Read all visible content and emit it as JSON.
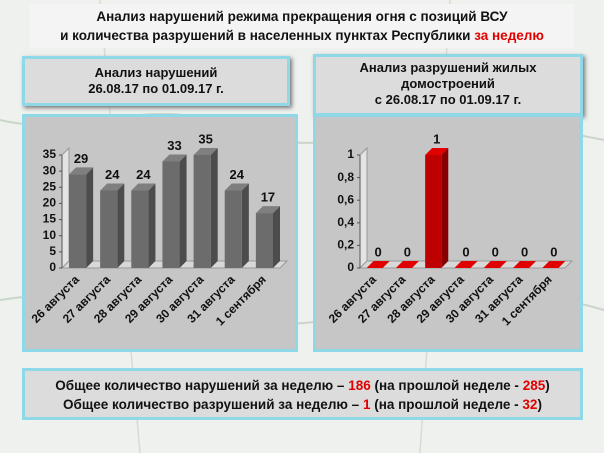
{
  "header": {
    "line1": "Анализ нарушений режима прекращения огня с позиций ВСУ",
    "line2": "и количества разрушений в населенных пунктах Республики",
    "highlight": "за неделю"
  },
  "chart_data": [
    {
      "type": "bar",
      "title_lines": [
        "Анализ нарушений",
        "26.08.17 по 01.09.17 г."
      ],
      "categories": [
        "26 августа",
        "27 августа",
        "28 августа",
        "29 августа",
        "30 августа",
        "31 августа",
        "1 сентября"
      ],
      "values": [
        29,
        24,
        24,
        33,
        35,
        24,
        17
      ],
      "color": "#7f7f7f",
      "ylim": [
        0,
        35
      ],
      "yticks": [
        0,
        5,
        10,
        15,
        20,
        25,
        30,
        35
      ],
      "grid": false
    },
    {
      "type": "bar",
      "title_lines": [
        "Анализ разрушений жилых",
        "домостроений",
        "с 26.08.17 по 01.09.17 г."
      ],
      "categories": [
        "26 августа",
        "27 августа",
        "28 августа",
        "29 августа",
        "30 августа",
        "31 августа",
        "1 сентября"
      ],
      "values": [
        0,
        0,
        1,
        0,
        0,
        0,
        0
      ],
      "color": "#e00000",
      "ylim": [
        0,
        1
      ],
      "yticks": [
        0,
        {
          "value": 0.2,
          "label": "0,2"
        },
        {
          "value": 0.4,
          "label": "0,4"
        },
        {
          "value": 0.6,
          "label": "0,6"
        },
        {
          "value": 0.8,
          "label": "0,8"
        },
        1
      ],
      "grid": false
    }
  ],
  "summary": [
    {
      "text": "Общее количество нарушений за неделю –",
      "value": "186",
      "mid": "(на прошлой неделе -",
      "prev": "285",
      "end": ")"
    },
    {
      "text": "Общее количество разрушений за неделю –",
      "value": "1",
      "mid": "(на прошлой неделе -",
      "prev": "32",
      "end": ")"
    }
  ]
}
